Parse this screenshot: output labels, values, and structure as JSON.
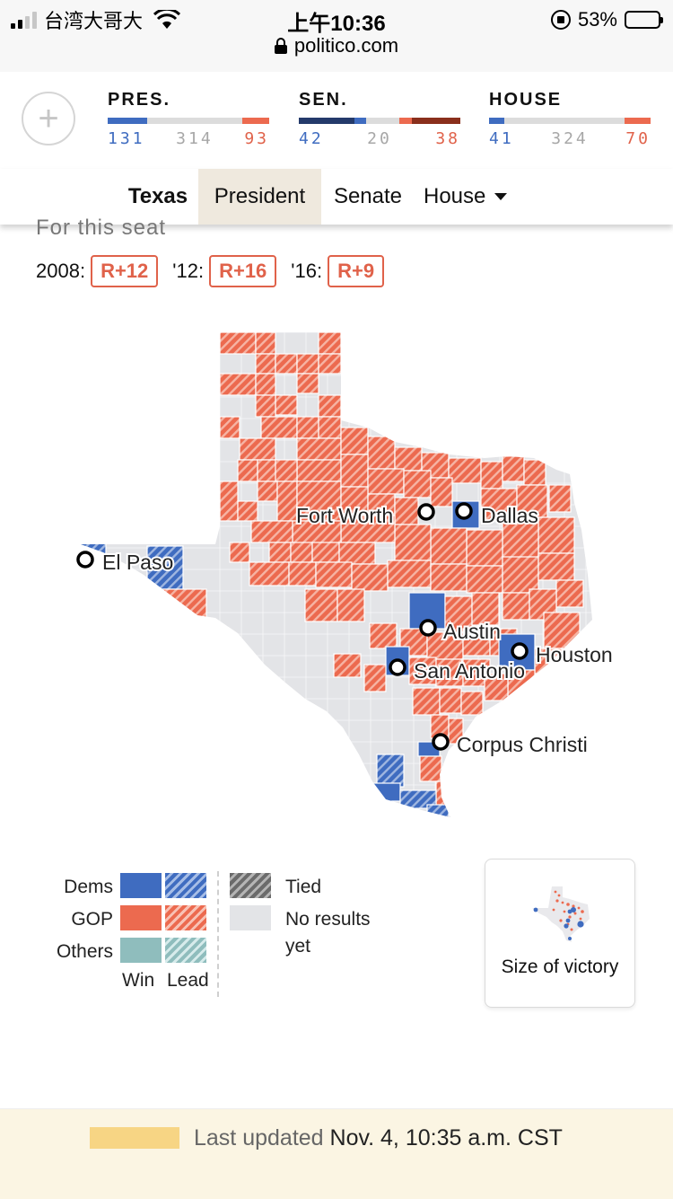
{
  "status_bar": {
    "carrier": "台湾大哥大",
    "time": "上午10:36",
    "battery": "53%",
    "battery_level": 0.53,
    "url": "politico.com"
  },
  "results": {
    "add_label": "+",
    "races": [
      {
        "label": "PRES.",
        "dem": "131",
        "undecided": "314",
        "rep": "93"
      },
      {
        "label": "SEN.",
        "dem": "42",
        "undecided": "20",
        "rep": "38"
      },
      {
        "label": "HOUSE",
        "dem": "41",
        "undecided": "324",
        "rep": "70"
      }
    ]
  },
  "tabs": {
    "state": "Texas",
    "president": "President",
    "senate": "Senate",
    "house": "House"
  },
  "seat": {
    "title": "For this seat",
    "history": [
      {
        "year": "2008:",
        "margin": "R+12"
      },
      {
        "year": "'12:",
        "margin": "R+16"
      },
      {
        "year": "'16:",
        "margin": "R+9"
      }
    ]
  },
  "map": {
    "cities": [
      "Fort Worth",
      "Dallas",
      "El Paso",
      "Austin",
      "Houston",
      "San Antonio",
      "Corpus Christi"
    ],
    "colors": {
      "dem": "#3f6cc0",
      "gop": "#ec6a4f",
      "no_results": "#e3e4e7",
      "border": "#ffffff"
    }
  },
  "legend": {
    "dems": "Dems",
    "gop": "GOP",
    "others": "Others",
    "win": "Win",
    "lead": "Lead",
    "tied": "Tied",
    "no_results_1": "No results",
    "no_results_2": "yet"
  },
  "victory": {
    "label": "Size of victory"
  },
  "footer": {
    "prefix": "Last updated",
    "date": "Nov. 4, 10:35 a.m. CST"
  }
}
